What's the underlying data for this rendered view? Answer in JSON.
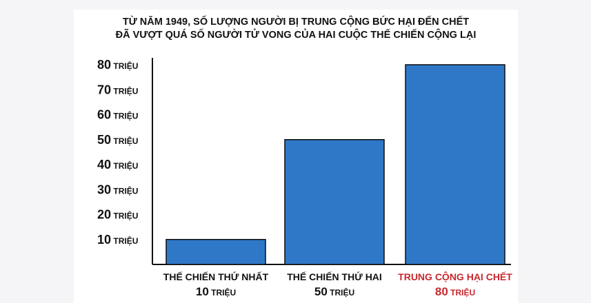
{
  "chart_data": {
    "type": "bar",
    "title_lines": [
      "TỪ NĂM 1949, SỐ LƯỢNG NGƯỜI BỊ TRUNG CỘNG BỨC HẠI ĐẾN CHẾT",
      "ĐÃ VƯỢT QUÁ SỐ NGƯỜI TỬ VONG CỦA HAI CUỘC THẾ CHIẾN CỘNG LẠI"
    ],
    "unit": "TRIỆU",
    "categories": [
      "THẾ CHIẾN THỨ NHẤT",
      "THẾ CHIẾN THỨ HAI",
      "TRUNG CỘNG HẠI CHẾT"
    ],
    "values": [
      10,
      50,
      80
    ],
    "value_labels": [
      "10",
      "50",
      "80"
    ],
    "label_colors": [
      "#111111",
      "#111111",
      "#c8282d"
    ],
    "bar_color": "#2f78c8",
    "bar_stroke": "#0d0d0d",
    "yticks": [
      10,
      20,
      30,
      40,
      50,
      60,
      70,
      80
    ],
    "ylim": [
      0,
      80
    ],
    "grid": false,
    "legend": "none"
  }
}
